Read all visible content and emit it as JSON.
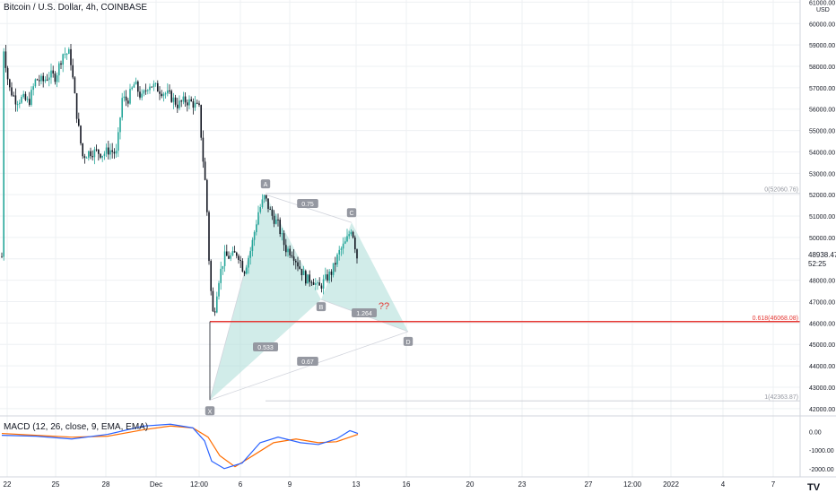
{
  "symbol": "Bitcoin / U.S. Dollar, 4h, COINBASE",
  "currency_label": "USD",
  "last_price": "48938.47",
  "countdown": "52:25",
  "macd_label": "MACD (12, 26, close, 9, EMA, EMA)",
  "logo_text": "TV",
  "colors": {
    "up": "#26a69a",
    "down": "#131722",
    "pattern_fill": "#b2dfdb",
    "fib_line": "#e53935",
    "macd": "#2962ff",
    "signal": "#ff6d00"
  },
  "chart_data": {
    "type": "candlestick",
    "price_axis": {
      "ylim": [
        41700,
        61100
      ],
      "ticks": [
        "61000.00",
        "60000.00",
        "59000.00",
        "58000.00",
        "57000.00",
        "56000.00",
        "55000.00",
        "54000.00",
        "53000.00",
        "52000.00",
        "51000.00",
        "50000.00",
        "49000.00",
        "48000.00",
        "47000.00",
        "46000.00",
        "45000.00",
        "44000.00",
        "43000.00",
        "42000.00"
      ]
    },
    "x_axis_labels": [
      "22",
      "25",
      "28",
      "Dec",
      "12:00",
      "6",
      "9",
      "13",
      "16",
      "20",
      "23",
      "27",
      "12:00",
      "2022",
      "4",
      "7"
    ],
    "macd_axis": {
      "ticks": [
        "0.00",
        "-1000.00",
        "-2000.00"
      ],
      "ylim": [
        -2350,
        750
      ]
    },
    "harmonic_pattern": {
      "points": [
        {
          "label": "X",
          "price": 42400
        },
        {
          "label": "A",
          "price": 52000
        },
        {
          "label": "B",
          "price": 47100
        },
        {
          "label": "C",
          "price": 50700
        },
        {
          "label": "D",
          "price": 45600
        }
      ],
      "ratios": [
        "0.75",
        "0.533",
        "0.67",
        "1.264"
      ]
    },
    "fib_levels": [
      {
        "label": "0(52060.76)",
        "price": 52060
      },
      {
        "label": "0.618(46068.08)",
        "price": 46068
      },
      {
        "label": "1(42363.87)",
        "price": 42363
      }
    ],
    "annotation": "??"
  }
}
